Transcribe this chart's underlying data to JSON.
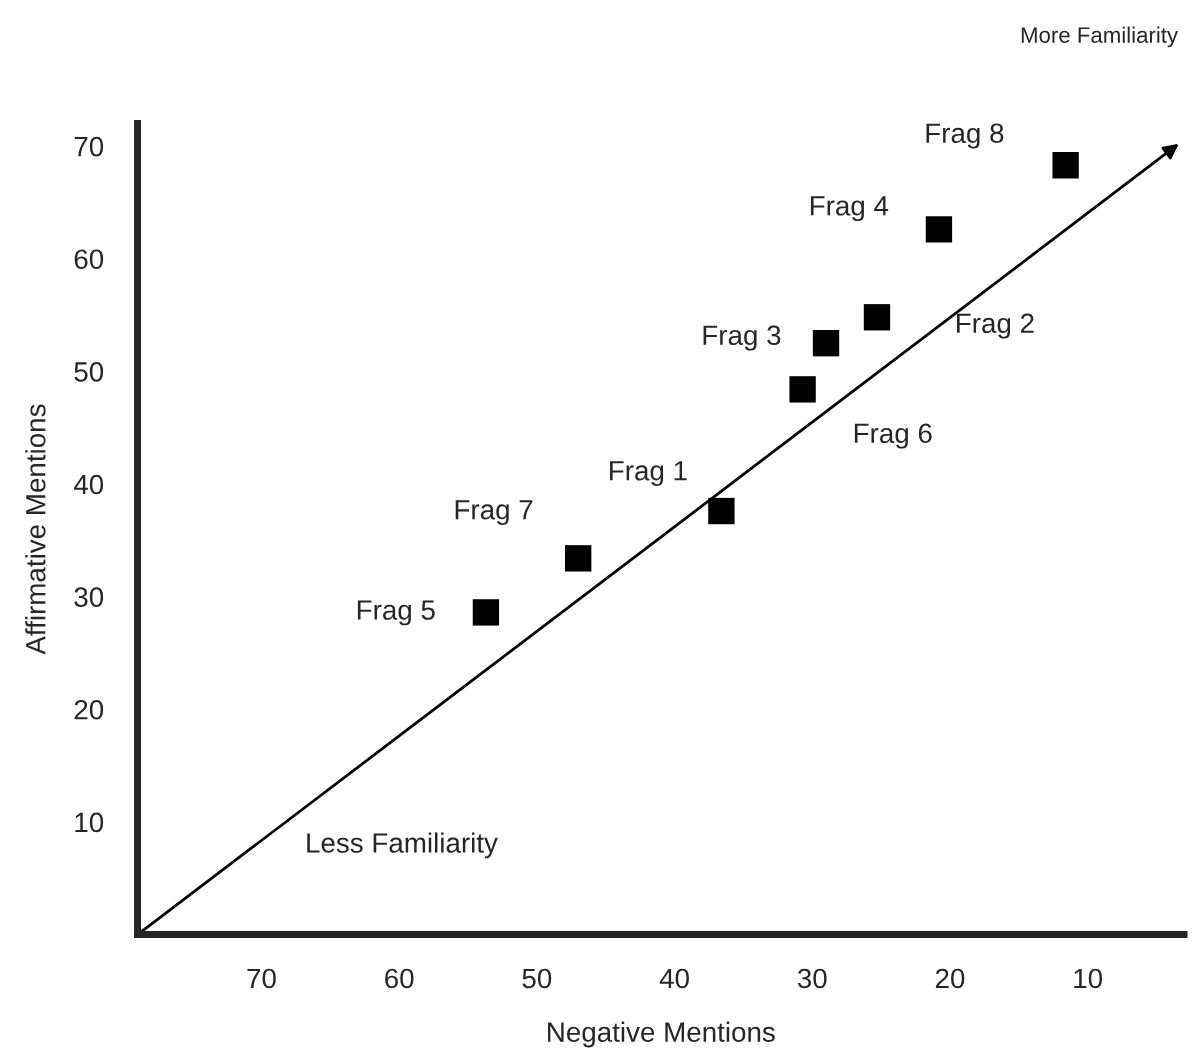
{
  "chart_data": {
    "type": "scatter",
    "xlabel": "Negative Mentions",
    "ylabel": "Affirmative Mentions",
    "xlim": [
      79,
      3
    ],
    "ylim": [
      0,
      72
    ],
    "xticks": [
      70,
      60,
      50,
      40,
      30,
      20,
      10
    ],
    "yticks": [
      10,
      20,
      30,
      40,
      50,
      60,
      70
    ],
    "grid": false,
    "marker": "square",
    "series": [
      {
        "color": "#000000",
        "x": [
          53.7,
          47.0,
          36.6,
          30.7,
          29.0,
          25.3,
          20.8,
          11.6
        ],
        "values": [
          28.6,
          33.4,
          37.6,
          48.4,
          52.5,
          54.8,
          62.6,
          68.3
        ]
      }
    ],
    "annotations": [
      {
        "text": "Frag 5",
        "x": 53.7,
        "y": 28.6
      },
      {
        "text": "Frag 7",
        "x": 47.0,
        "y": 33.4
      },
      {
        "text": "Frag 1",
        "x": 36.6,
        "y": 37.6
      },
      {
        "text": "Frag 6",
        "x": 30.7,
        "y": 48.4
      },
      {
        "text": "Frag 3",
        "x": 29.0,
        "y": 52.5
      },
      {
        "text": "Frag 2",
        "x": 25.3,
        "y": 54.8
      },
      {
        "text": "Frag 4",
        "x": 20.8,
        "y": 62.6
      },
      {
        "text": "Frag 8",
        "x": 11.6,
        "y": 68.3
      },
      "Less Familiarity",
      "More Familiarity"
    ]
  }
}
